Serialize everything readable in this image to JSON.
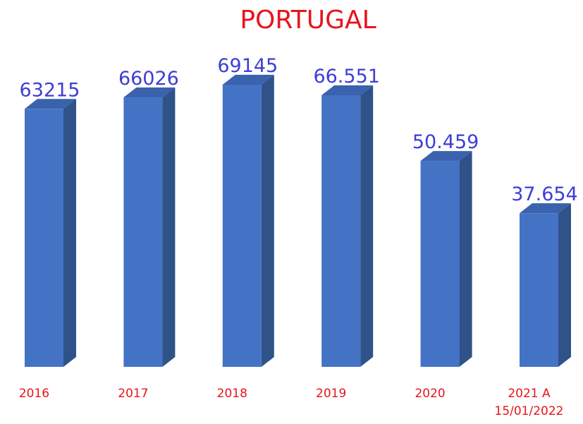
{
  "chart_data": {
    "type": "bar3d",
    "title": "PORTUGAL",
    "categories": [
      "2016",
      "2017",
      "2018",
      "2019",
      "2020",
      "2021 A\n15/01/2022"
    ],
    "values": [
      63215,
      66026,
      69145,
      66551,
      50459,
      37654
    ],
    "value_labels": [
      "63215",
      "66026",
      "69145",
      "66.551",
      "50.459",
      "37.654"
    ],
    "color": "#4472c4"
  }
}
